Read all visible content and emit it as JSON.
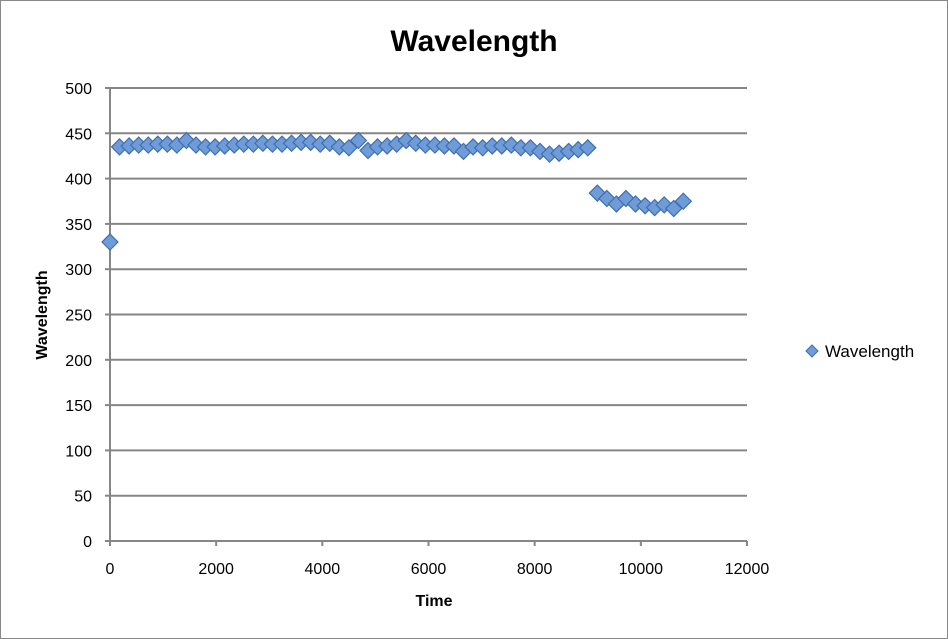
{
  "chart_data": {
    "type": "scatter",
    "title": "Wavelength",
    "xlabel": "Time",
    "ylabel": "Wavelength",
    "xlim": [
      0,
      12000
    ],
    "ylim": [
      0,
      500
    ],
    "xticks": [
      0,
      2000,
      4000,
      6000,
      8000,
      10000,
      12000
    ],
    "yticks": [
      0,
      50,
      100,
      150,
      200,
      250,
      300,
      350,
      400,
      450,
      500
    ],
    "grid": "horizontal",
    "legend_position": "right",
    "series": [
      {
        "name": "Wavelength",
        "color": "#4f81bd",
        "marker": "diamond",
        "x": [
          0,
          180,
          360,
          540,
          720,
          900,
          1080,
          1260,
          1440,
          1620,
          1800,
          1980,
          2160,
          2340,
          2520,
          2700,
          2880,
          3060,
          3240,
          3420,
          3600,
          3780,
          3960,
          4140,
          4320,
          4500,
          4680,
          4860,
          5040,
          5220,
          5400,
          5580,
          5760,
          5940,
          6120,
          6300,
          6480,
          6660,
          6840,
          7020,
          7200,
          7380,
          7560,
          7740,
          7920,
          8100,
          8280,
          8460,
          8640,
          8820,
          9000,
          9180,
          9360,
          9540,
          9720,
          9900,
          10080,
          10260,
          10440,
          10620,
          10800
        ],
        "y": [
          330,
          435,
          436,
          437,
          437,
          438,
          438,
          437,
          442,
          437,
          435,
          435,
          436,
          437,
          438,
          438,
          439,
          438,
          438,
          439,
          440,
          440,
          438,
          439,
          435,
          434,
          442,
          431,
          435,
          436,
          438,
          442,
          439,
          437,
          437,
          436,
          436,
          430,
          435,
          434,
          436,
          436,
          437,
          434,
          434,
          430,
          427,
          428,
          430,
          432,
          434,
          384,
          378,
          372,
          378,
          372,
          370,
          368,
          371,
          367,
          375
        ]
      }
    ]
  }
}
